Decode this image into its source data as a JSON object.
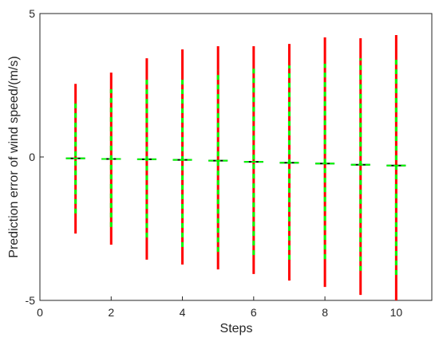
{
  "chart_data": {
    "type": "range",
    "xlabel": "Steps",
    "ylabel": "Prediction error of wind speed/(m/s)",
    "x": [
      1,
      2,
      3,
      4,
      5,
      6,
      7,
      8,
      9,
      10
    ],
    "outer_low": [
      -2.67,
      -3.06,
      -3.58,
      -3.75,
      -3.92,
      -4.08,
      -4.31,
      -4.53,
      -4.81,
      -5
    ],
    "outer_high": [
      2.55,
      2.94,
      3.44,
      3.75,
      3.86,
      3.86,
      3.94,
      4.17,
      4.14,
      4.25
    ],
    "inner_low": [
      -1.97,
      -2.44,
      -2.81,
      -3.14,
      -3.31,
      -3.42,
      -3.58,
      -3.56,
      -3.97,
      -4.11
    ],
    "inner_high": [
      1.94,
      2.36,
      2.69,
      2.86,
      3.03,
      3.14,
      3.19,
      3.25,
      3.44,
      3.47
    ],
    "median": [
      -0.05,
      -0.07,
      -0.08,
      -0.1,
      -0.13,
      -0.17,
      -0.2,
      -0.23,
      -0.27,
      -0.3
    ],
    "outer_color": "#ff0000",
    "inner_color": "#00ff00",
    "median_color": "#000000",
    "xlim": [
      0,
      11
    ],
    "ylim": [
      -5,
      5
    ],
    "xticks": [
      0,
      2,
      4,
      6,
      8,
      10
    ],
    "yticks": [
      -5,
      0,
      5
    ]
  }
}
